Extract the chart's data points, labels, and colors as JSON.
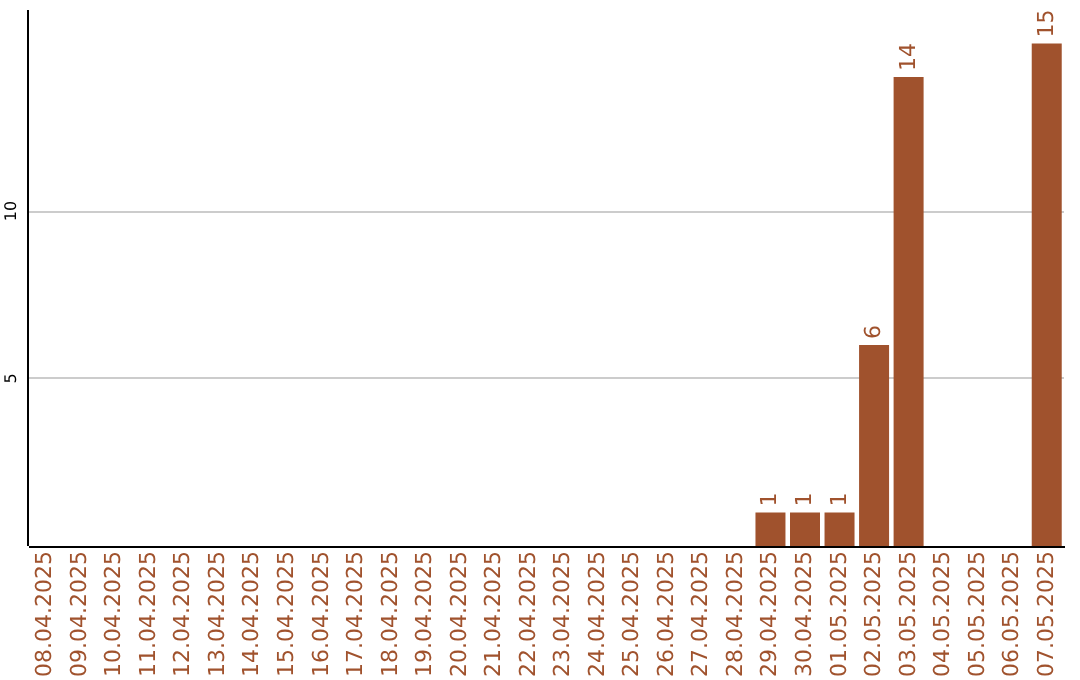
{
  "chart_data": {
    "type": "bar",
    "categories": [
      "08.04.2025",
      "09.04.2025",
      "10.04.2025",
      "11.04.2025",
      "12.04.2025",
      "13.04.2025",
      "14.04.2025",
      "15.04.2025",
      "16.04.2025",
      "17.04.2025",
      "18.04.2025",
      "19.04.2025",
      "20.04.2025",
      "21.04.2025",
      "22.04.2025",
      "23.04.2025",
      "24.04.2025",
      "25.04.2025",
      "26.04.2025",
      "27.04.2025",
      "28.04.2025",
      "29.04.2025",
      "30.04.2025",
      "01.05.2025",
      "02.05.2025",
      "03.05.2025",
      "04.05.2025",
      "05.05.2025",
      "06.05.2025",
      "07.05.2025"
    ],
    "values": [
      null,
      null,
      null,
      null,
      null,
      null,
      null,
      null,
      null,
      null,
      null,
      null,
      null,
      null,
      null,
      null,
      null,
      null,
      null,
      null,
      null,
      1,
      1,
      1,
      6,
      14,
      null,
      null,
      null,
      15
    ],
    "color": "#a0522d",
    "ylim": [
      0,
      16
    ],
    "yticks": [
      5,
      10
    ],
    "grid": "y",
    "data_labels": true
  }
}
